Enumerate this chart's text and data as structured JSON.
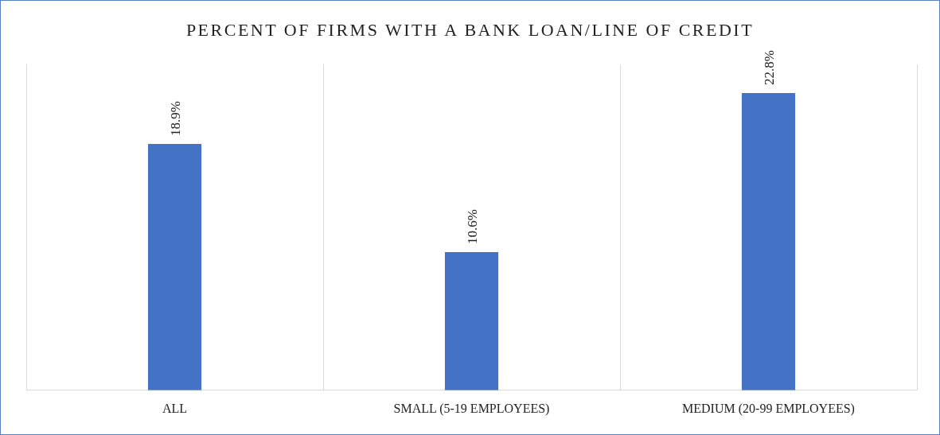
{
  "chart_data": {
    "type": "bar",
    "title": "PERCENT OF FIRMS WITH A BANK LOAN/LINE OF CREDIT",
    "categories": [
      "ALL",
      "SMALL (5-19 EMPLOYEES)",
      "MEDIUM (20-99 EMPLOYEES)"
    ],
    "values": [
      18.9,
      10.6,
      22.8
    ],
    "value_labels": [
      "18.9%",
      "10.6%",
      "22.8%"
    ],
    "color": "#4472c4",
    "ylim": [
      0,
      25
    ],
    "tick_labels": "x",
    "grid": "x"
  }
}
